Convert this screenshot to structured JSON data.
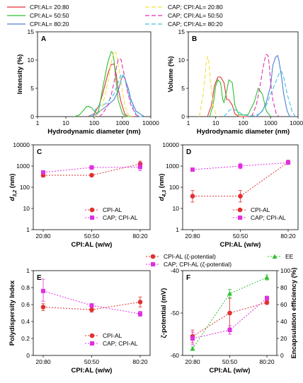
{
  "legend_top": [
    {
      "label": "CPI:AL= 20:80",
      "color": "#e03030",
      "dash": ""
    },
    {
      "label": "CAP; CPI:AL= 20:80",
      "color": "#f0e040",
      "dash": "6,3"
    },
    {
      "label": "CPI:AL= 50:50",
      "color": "#30c030",
      "dash": ""
    },
    {
      "label": "CAP; CPI:AL= 50:50",
      "color": "#e030b0",
      "dash": "6,3"
    },
    {
      "label": "CPI:AL= 80:20",
      "color": "#5080d0",
      "dash": ""
    },
    {
      "label": "CAP; CPI:AL= 80:20",
      "color": "#40c0e0",
      "dash": "6,3"
    }
  ],
  "chart_data": [
    {
      "panel": "A",
      "type": "line",
      "xscale": "log",
      "xlim": [
        1,
        10000
      ],
      "ylim": [
        0,
        15
      ],
      "xticks": [
        "1",
        "10",
        "100",
        "1000",
        "10000"
      ],
      "yticks": [
        "0",
        "5",
        "10",
        "15"
      ],
      "xlabel": "Hydrodynamic diameter (nm)",
      "ylabel": "Intensity (%)",
      "series": [
        {
          "name": "CPI:AL= 20:80",
          "color": "#e03030",
          "dash": "",
          "x": [
            60,
            100,
            150,
            200,
            300,
            400,
            500,
            600,
            700,
            900,
            1200,
            1600,
            2000,
            2500
          ],
          "y": [
            0,
            0.5,
            2,
            4,
            7.5,
            9.2,
            9.3,
            7.5,
            5,
            2.5,
            0.5,
            0,
            0,
            0
          ]
        },
        {
          "name": "CPI:AL= 50:50",
          "color": "#30c030",
          "dash": "",
          "x": [
            20,
            30,
            40,
            55,
            65,
            80,
            100,
            130,
            150,
            200,
            300,
            400,
            450,
            500,
            600,
            700,
            1000,
            1400,
            2000
          ],
          "y": [
            0,
            0.3,
            1,
            1.8,
            1.8,
            1.6,
            1,
            0.5,
            1.5,
            5,
            9.5,
            11.5,
            11.3,
            10,
            6,
            3,
            0.5,
            0,
            0
          ]
        },
        {
          "name": "CPI:AL= 80:20",
          "color": "#5080d0",
          "dash": "",
          "x": [
            80,
            120,
            160,
            200,
            300,
            500,
            700,
            900,
            1000,
            1200,
            1600,
            2000,
            3000,
            5000,
            6000
          ],
          "y": [
            0,
            0.5,
            1,
            1.3,
            2,
            3,
            4.5,
            6.5,
            7.2,
            6.8,
            5,
            3,
            1,
            0.2,
            0
          ]
        },
        {
          "name": "CAP; CPI:AL= 20:80",
          "color": "#f0e040",
          "dash": "6,3",
          "x": [
            100,
            150,
            200,
            300,
            400,
            500,
            600,
            700,
            900,
            1200,
            1600,
            2000
          ],
          "y": [
            0,
            0.5,
            2,
            6,
            9.5,
            11.5,
            11.3,
            9.5,
            6,
            2,
            0.3,
            0
          ]
        },
        {
          "name": "CAP; CPI:AL= 50:50",
          "color": "#e030b0",
          "dash": "6,3",
          "x": [
            150,
            200,
            300,
            400,
            500,
            600,
            700,
            800,
            900,
            1000,
            1200,
            1500,
            2000,
            3000,
            4000
          ],
          "y": [
            0,
            0.5,
            2,
            3.8,
            6,
            8.5,
            10,
            10.3,
            10,
            8.8,
            7,
            4.5,
            2,
            0.3,
            0
          ]
        },
        {
          "name": "CAP; CPI:AL= 80:20",
          "color": "#40c0e0",
          "dash": "6,3",
          "x": [
            70,
            90,
            120,
            150,
            200,
            300,
            500,
            700,
            900,
            1100,
            1500,
            2000,
            3000,
            4000,
            5000
          ],
          "y": [
            0,
            0.5,
            1.5,
            2,
            2,
            2.5,
            4,
            6,
            7.5,
            7.3,
            5,
            2.5,
            0.5,
            0,
            0
          ]
        }
      ]
    },
    {
      "panel": "B",
      "type": "line",
      "xscale": "log",
      "xlim": [
        1,
        10000
      ],
      "ylim": [
        0,
        15
      ],
      "xticks": [
        "1",
        "10",
        "100",
        "1000",
        "10000"
      ],
      "yticks": [
        "0",
        "5",
        "10",
        "15"
      ],
      "xlabel": "Hydrodynamic diameter (nm)",
      "ylabel": "Volume (%)",
      "series": [
        {
          "name": "CPI:AL= 20:80",
          "color": "#e03030",
          "dash": "",
          "x": [
            5,
            7,
            9,
            12,
            15,
            20,
            25,
            30,
            40,
            50,
            70,
            100,
            150
          ],
          "y": [
            0,
            2,
            5.5,
            7,
            7,
            6,
            3,
            3,
            2,
            0.5,
            0,
            0,
            0
          ]
        },
        {
          "name": "CPI:AL= 50:50",
          "color": "#30c030",
          "dash": "",
          "x": [
            6,
            8,
            10,
            12,
            15,
            18,
            20,
            25,
            30,
            40,
            50,
            70,
            150,
            250,
            350,
            500,
            700,
            1000
          ],
          "y": [
            0,
            2,
            5.5,
            6.5,
            6,
            3,
            2.5,
            4.5,
            6.5,
            6,
            2,
            0.3,
            0.3,
            2.5,
            5,
            4,
            1,
            0
          ]
        },
        {
          "name": "CPI:AL= 80:20",
          "color": "#5080d0",
          "dash": "",
          "x": [
            300,
            500,
            700,
            1000,
            1200,
            1500,
            1800,
            2000,
            2500,
            3000,
            4000,
            5000
          ],
          "y": [
            0,
            1,
            2.5,
            5.5,
            9,
            10.5,
            10.8,
            10,
            7,
            4,
            1,
            0
          ]
        },
        {
          "name": "CAP; CPI:AL= 20:80",
          "color": "#f0e040",
          "dash": "6,3",
          "x": [
            2.5,
            3.5,
            4.5,
            5,
            5.5,
            6.5,
            8,
            10,
            12
          ],
          "y": [
            0,
            4,
            9.5,
            10.6,
            10,
            6,
            2,
            0.5,
            0
          ]
        },
        {
          "name": "CAP; CPI:AL= 50:50",
          "color": "#e030b0",
          "dash": "6,3",
          "x": [
            200,
            300,
            400,
            500,
            600,
            700,
            800,
            900,
            1000,
            1200,
            1600,
            2000
          ],
          "y": [
            0,
            2,
            5,
            8,
            10,
            11,
            10.8,
            9,
            6,
            3,
            0.5,
            0
          ]
        },
        {
          "name": "CAP; CPI:AL= 80:20",
          "color": "#40c0e0",
          "dash": "6,3",
          "x": [
            20,
            30,
            40,
            60,
            100,
            200,
            400,
            700,
            1000,
            1500,
            2000,
            2500,
            3000,
            4000,
            6000,
            8000
          ],
          "y": [
            0,
            1,
            1.5,
            1,
            0.3,
            0.1,
            0.5,
            2,
            4,
            6,
            7.5,
            8,
            7,
            4,
            1,
            0
          ]
        }
      ]
    },
    {
      "panel": "C",
      "type": "scatter",
      "yscale": "log",
      "ylim": [
        1,
        10000
      ],
      "categories": [
        "20:80",
        "50:50",
        "80:20"
      ],
      "yticks": [
        "1",
        "10",
        "100",
        "1000",
        "10000"
      ],
      "xlabel": "CPI:AL (w/w)",
      "ylabel": "d3,2 (nm)",
      "series": [
        {
          "name": "CPI-AL",
          "color": "#e03030",
          "marker": "circle",
          "values": [
            370,
            370,
            1250
          ],
          "err": [
            [
              300,
              450
            ],
            [
              330,
              420
            ],
            [
              900,
              1700
            ]
          ]
        },
        {
          "name": "CAP; CPI-AL",
          "color": "#e030e0",
          "marker": "square",
          "values": [
            500,
            860,
            900
          ],
          "err": [
            [
              420,
              600
            ],
            [
              700,
              1050
            ],
            [
              600,
              1400
            ]
          ]
        }
      ]
    },
    {
      "panel": "D",
      "type": "scatter",
      "yscale": "log",
      "ylim": [
        1,
        10000
      ],
      "categories": [
        "20:80",
        "50:50",
        "80:20"
      ],
      "yticks": [
        "1",
        "10",
        "100",
        "1000",
        "10000"
      ],
      "xlabel": "CPI:AL (w/w)",
      "ylabel": "d4,3 (nm)",
      "series": [
        {
          "name": "CPI-AL",
          "color": "#e03030",
          "marker": "circle",
          "values": [
            38,
            38,
            1500
          ],
          "err": [
            [
              20,
              70
            ],
            [
              20,
              70
            ],
            [
              1200,
              1900
            ]
          ]
        },
        {
          "name": "CAP; CPI-AL",
          "color": "#e030e0",
          "marker": "square",
          "values": [
            680,
            1000,
            1450
          ],
          "err": [
            [
              580,
              800
            ],
            [
              750,
              1350
            ],
            [
              1200,
              1800
            ]
          ]
        }
      ]
    },
    {
      "panel": "E",
      "type": "scatter",
      "ylim": [
        0,
        1
      ],
      "categories": [
        "20:80",
        "50:50",
        "80:20"
      ],
      "yticks": [
        "0",
        "0.2",
        "0.4",
        "0.6",
        "0.8",
        "1"
      ],
      "xlabel": "CPI:AL (w/w)",
      "ylabel": "Polydispersity Index",
      "series": [
        {
          "name": "CPI-AL",
          "color": "#e03030",
          "marker": "circle",
          "values": [
            0.57,
            0.54,
            0.63
          ],
          "err": [
            [
              0.53,
              0.61
            ],
            [
              0.51,
              0.57
            ],
            [
              0.57,
              0.69
            ]
          ]
        },
        {
          "name": "CAP; CPI-AL",
          "color": "#e030e0",
          "marker": "square",
          "values": [
            0.76,
            0.59,
            0.49
          ],
          "err": [
            [
              0.64,
              0.9
            ],
            [
              0.57,
              0.61
            ],
            [
              0.46,
              0.52
            ]
          ]
        }
      ]
    },
    {
      "panel": "F",
      "type": "scatter",
      "categories": [
        "20:80",
        "50:50",
        "80:20"
      ],
      "ylim_left": [
        -60,
        -40
      ],
      "ylim_right": [
        0,
        100
      ],
      "yticks_left": [
        "-60",
        "-50",
        "-40"
      ],
      "yticks_right": [
        "0",
        "20",
        "40",
        "60",
        "80",
        "100"
      ],
      "xlabel": "CPI:AL (w/w)",
      "ylabel": "ζ-potential (mV)",
      "ylabel_right": "Encapsulation efficiency (%)",
      "series": [
        {
          "name": "CPI-AL (ζ-potential)",
          "axis": "left",
          "color": "#e03030",
          "marker": "circle",
          "values": [
            -55.5,
            -50,
            -47.5
          ],
          "err": [
            [
              -57,
              -54
            ],
            [
              -53.5,
              -46.5
            ],
            [
              -48,
              -47
            ]
          ]
        },
        {
          "name": "CAP; CPI-AL (ζ-potential)",
          "axis": "left",
          "color": "#e030e0",
          "marker": "square",
          "values": [
            -56,
            -54,
            -46.5
          ],
          "err": [
            [
              -57.5,
              -54.5
            ],
            [
              -55,
              -53
            ],
            [
              -47,
              -46
            ]
          ]
        },
        {
          "name": "EE",
          "axis": "right",
          "color": "#30c030",
          "marker": "triangle",
          "values": [
            8,
            73,
            92
          ],
          "err": [
            [
              6,
              10
            ],
            [
              68,
              78
            ],
            [
              89,
              95
            ]
          ]
        }
      ]
    }
  ]
}
